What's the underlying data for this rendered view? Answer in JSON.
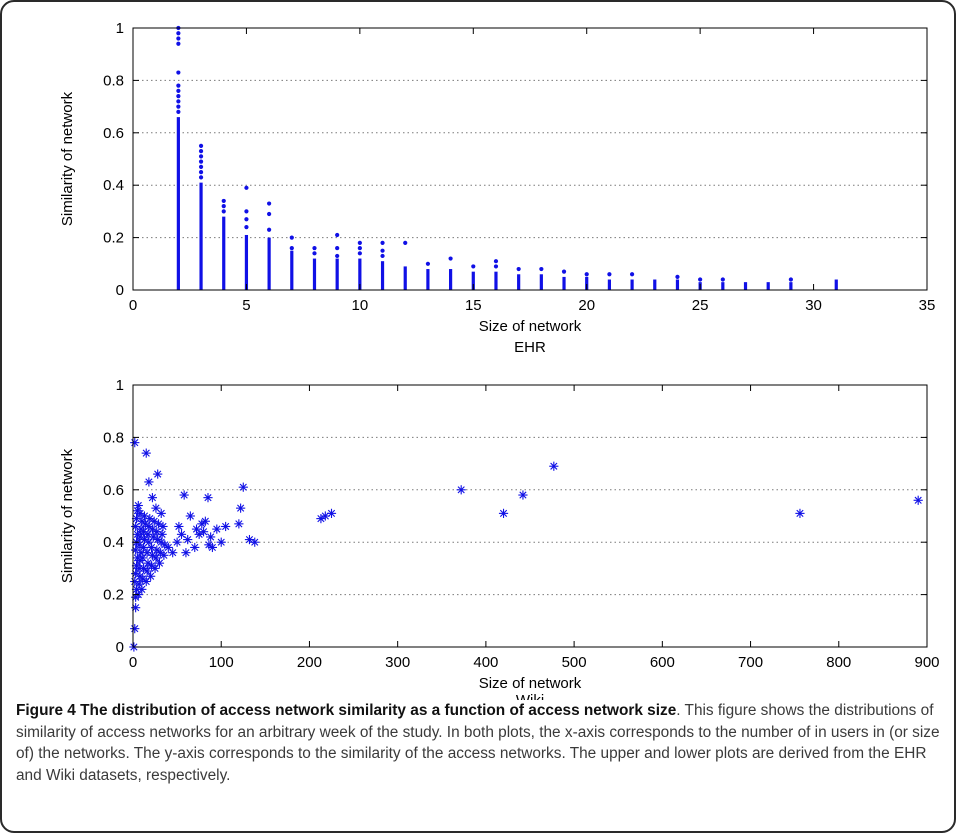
{
  "figure": {
    "caption_title": "Figure 4 The distribution of access network similarity as a function of access network size",
    "caption_body": ". This figure shows the distributions of similarity of access networks for an arbitrary week of the study. In both plots, the x-axis corresponds to the number of in users in (or size of) the networks. The y-axis corresponds to the similarity of the access networks. The upper and lower plots are derived from the EHR and Wiki datasets, respectively."
  },
  "colors": {
    "marker": "#1010e6",
    "grid": "#7a7a7a",
    "axis": "#000000"
  },
  "chart_data": [
    {
      "type": "scatter",
      "marker": "dot",
      "title": "EHR",
      "xlabel": "Size of network",
      "ylabel": "Similarity of network",
      "xlim": [
        0,
        35
      ],
      "ylim": [
        0,
        1
      ],
      "xticks": [
        0,
        5,
        10,
        15,
        20,
        25,
        30,
        35
      ],
      "yticks": [
        0,
        0.2,
        0.4,
        0.6,
        0.8,
        1
      ],
      "grid": "y-dotted",
      "columns": [
        {
          "x": 2,
          "max": 0.66,
          "extra": [
            0.68,
            0.7,
            0.72,
            0.74,
            0.76,
            0.78,
            0.83,
            0.94,
            0.96,
            0.98,
            1.0
          ]
        },
        {
          "x": 3,
          "max": 0.41,
          "extra": [
            0.43,
            0.45,
            0.47,
            0.49,
            0.51,
            0.53,
            0.55
          ]
        },
        {
          "x": 4,
          "max": 0.28,
          "extra": [
            0.3,
            0.32,
            0.34
          ]
        },
        {
          "x": 5,
          "max": 0.21,
          "extra": [
            0.24,
            0.27,
            0.3,
            0.39
          ]
        },
        {
          "x": 6,
          "max": 0.2,
          "extra": [
            0.23,
            0.29,
            0.33
          ]
        },
        {
          "x": 7,
          "max": 0.15,
          "extra": [
            0.16,
            0.2
          ]
        },
        {
          "x": 8,
          "max": 0.12,
          "extra": [
            0.14,
            0.16
          ]
        },
        {
          "x": 9,
          "max": 0.12,
          "extra": [
            0.13,
            0.16,
            0.21
          ]
        },
        {
          "x": 10,
          "max": 0.12,
          "extra": [
            0.14,
            0.16,
            0.18
          ]
        },
        {
          "x": 11,
          "max": 0.11,
          "extra": [
            0.13,
            0.15,
            0.18
          ]
        },
        {
          "x": 12,
          "max": 0.09,
          "extra": [
            0.18
          ]
        },
        {
          "x": 13,
          "max": 0.08,
          "extra": [
            0.1
          ]
        },
        {
          "x": 14,
          "max": 0.08,
          "extra": [
            0.12
          ]
        },
        {
          "x": 15,
          "max": 0.07,
          "extra": [
            0.09
          ]
        },
        {
          "x": 16,
          "max": 0.07,
          "extra": [
            0.09,
            0.11
          ]
        },
        {
          "x": 17,
          "max": 0.06,
          "extra": [
            0.08
          ]
        },
        {
          "x": 18,
          "max": 0.06,
          "extra": [
            0.08
          ]
        },
        {
          "x": 19,
          "max": 0.05,
          "extra": [
            0.07
          ]
        },
        {
          "x": 20,
          "max": 0.05,
          "extra": [
            0.06
          ]
        },
        {
          "x": 21,
          "max": 0.04,
          "extra": [
            0.06
          ]
        },
        {
          "x": 22,
          "max": 0.04,
          "extra": [
            0.06
          ]
        },
        {
          "x": 23,
          "max": 0.04,
          "extra": []
        },
        {
          "x": 24,
          "max": 0.04,
          "extra": [
            0.05
          ]
        },
        {
          "x": 25,
          "max": 0.03,
          "extra": [
            0.04
          ]
        },
        {
          "x": 26,
          "max": 0.03,
          "extra": [
            0.04
          ]
        },
        {
          "x": 27,
          "max": 0.03,
          "extra": []
        },
        {
          "x": 28,
          "max": 0.03,
          "extra": []
        },
        {
          "x": 29,
          "max": 0.03,
          "extra": [
            0.04
          ]
        },
        {
          "x": 31,
          "max": 0.04,
          "extra": []
        }
      ]
    },
    {
      "type": "scatter",
      "marker": "asterisk",
      "title": "Wiki",
      "xlabel": "Size of network",
      "ylabel": "Similarity of network",
      "xlim": [
        0,
        900
      ],
      "ylim": [
        0,
        1
      ],
      "xticks": [
        0,
        100,
        200,
        300,
        400,
        500,
        600,
        700,
        800,
        900
      ],
      "yticks": [
        0,
        0.2,
        0.4,
        0.6,
        0.8,
        1
      ],
      "grid": "y-dotted",
      "points": [
        [
          1,
          0.0
        ],
        [
          2,
          0.07
        ],
        [
          3,
          0.15
        ],
        [
          3,
          0.19
        ],
        [
          4,
          0.22
        ],
        [
          2,
          0.25
        ],
        [
          3,
          0.28
        ],
        [
          4,
          0.31
        ],
        [
          5,
          0.34
        ],
        [
          3,
          0.37
        ],
        [
          4,
          0.4
        ],
        [
          5,
          0.43
        ],
        [
          3,
          0.46
        ],
        [
          4,
          0.49
        ],
        [
          5,
          0.52
        ],
        [
          6,
          0.54
        ],
        [
          2,
          0.78
        ],
        [
          6,
          0.2
        ],
        [
          7,
          0.24
        ],
        [
          8,
          0.27
        ],
        [
          7,
          0.3
        ],
        [
          8,
          0.33
        ],
        [
          9,
          0.36
        ],
        [
          7,
          0.39
        ],
        [
          8,
          0.42
        ],
        [
          9,
          0.45
        ],
        [
          10,
          0.48
        ],
        [
          8,
          0.51
        ],
        [
          10,
          0.22
        ],
        [
          11,
          0.26
        ],
        [
          12,
          0.3
        ],
        [
          11,
          0.34
        ],
        [
          12,
          0.38
        ],
        [
          13,
          0.41
        ],
        [
          12,
          0.44
        ],
        [
          14,
          0.47
        ],
        [
          13,
          0.5
        ],
        [
          15,
          0.25
        ],
        [
          16,
          0.29
        ],
        [
          17,
          0.32
        ],
        [
          16,
          0.36
        ],
        [
          18,
          0.4
        ],
        [
          17,
          0.43
        ],
        [
          18,
          0.46
        ],
        [
          19,
          0.49
        ],
        [
          20,
          0.27
        ],
        [
          21,
          0.31
        ],
        [
          22,
          0.35
        ],
        [
          21,
          0.38
        ],
        [
          23,
          0.42
        ],
        [
          22,
          0.45
        ],
        [
          24,
          0.48
        ],
        [
          25,
          0.3
        ],
        [
          26,
          0.34
        ],
        [
          27,
          0.37
        ],
        [
          28,
          0.41
        ],
        [
          27,
          0.44
        ],
        [
          29,
          0.47
        ],
        [
          30,
          0.32
        ],
        [
          31,
          0.36
        ],
        [
          32,
          0.4
        ],
        [
          33,
          0.43
        ],
        [
          34,
          0.46
        ],
        [
          35,
          0.35
        ],
        [
          36,
          0.39
        ],
        [
          15,
          0.74
        ],
        [
          18,
          0.63
        ],
        [
          28,
          0.66
        ],
        [
          22,
          0.57
        ],
        [
          26,
          0.53
        ],
        [
          32,
          0.51
        ],
        [
          40,
          0.38
        ],
        [
          45,
          0.36
        ],
        [
          50,
          0.4
        ],
        [
          52,
          0.46
        ],
        [
          55,
          0.43
        ],
        [
          58,
          0.58
        ],
        [
          60,
          0.36
        ],
        [
          62,
          0.41
        ],
        [
          65,
          0.5
        ],
        [
          70,
          0.38
        ],
        [
          72,
          0.45
        ],
        [
          75,
          0.43
        ],
        [
          78,
          0.47
        ],
        [
          80,
          0.44
        ],
        [
          82,
          0.48
        ],
        [
          85,
          0.57
        ],
        [
          86,
          0.39
        ],
        [
          88,
          0.42
        ],
        [
          90,
          0.38
        ],
        [
          95,
          0.45
        ],
        [
          100,
          0.4
        ],
        [
          105,
          0.46
        ],
        [
          120,
          0.47
        ],
        [
          122,
          0.53
        ],
        [
          125,
          0.61
        ],
        [
          132,
          0.41
        ],
        [
          138,
          0.4
        ],
        [
          213,
          0.49
        ],
        [
          218,
          0.5
        ],
        [
          225,
          0.51
        ],
        [
          372,
          0.6
        ],
        [
          420,
          0.51
        ],
        [
          442,
          0.58
        ],
        [
          477,
          0.69
        ],
        [
          756,
          0.51
        ],
        [
          890,
          0.56
        ]
      ]
    }
  ]
}
